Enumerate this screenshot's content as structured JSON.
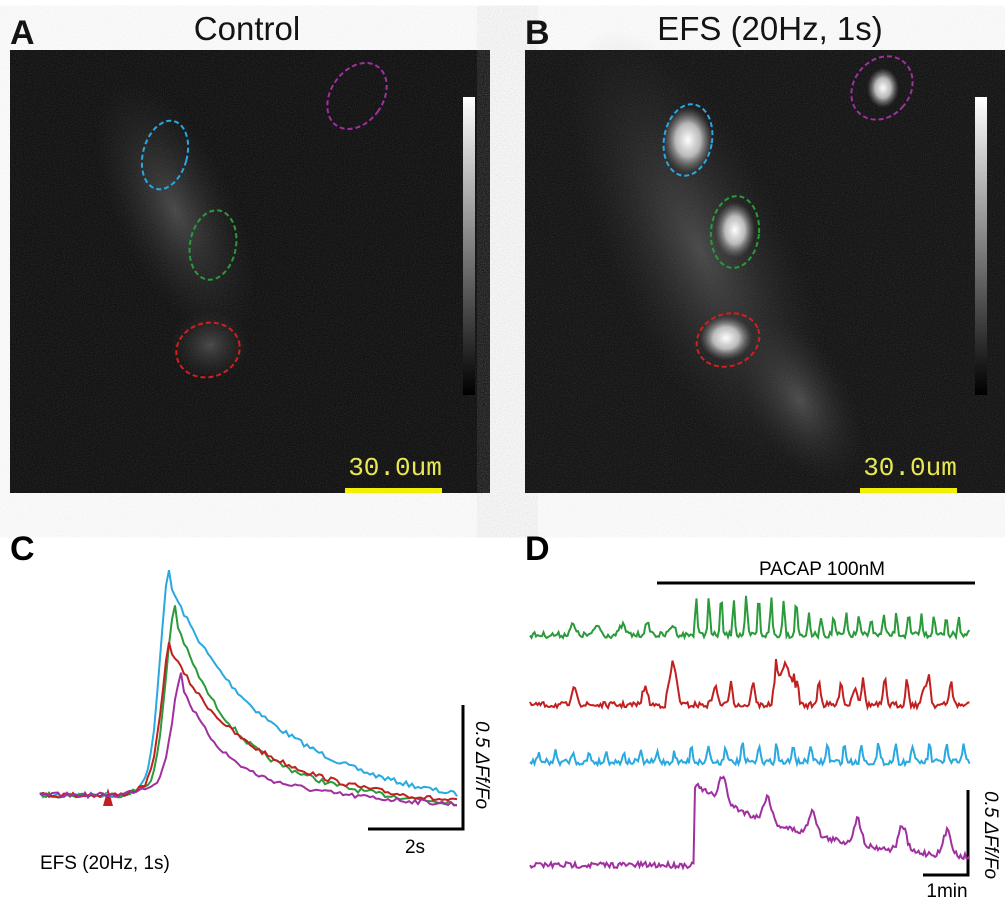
{
  "panels": [
    {
      "label": "A",
      "title": "Control",
      "scale_bar": "30.0um"
    },
    {
      "label": "B",
      "title": "EFS (20Hz, 1s)",
      "scale_bar": "30.0um"
    },
    {
      "label": "C",
      "stimulus": "EFS (20Hz, 1s)",
      "time_scale": "2s",
      "amplitude_scale": "0.5 ΔFf/Fo"
    },
    {
      "label": "D",
      "treatment": "PACAP 100nM",
      "time_scale": "1min",
      "amplitude_scale": "0.5 ΔFf/Fo"
    }
  ]
}
